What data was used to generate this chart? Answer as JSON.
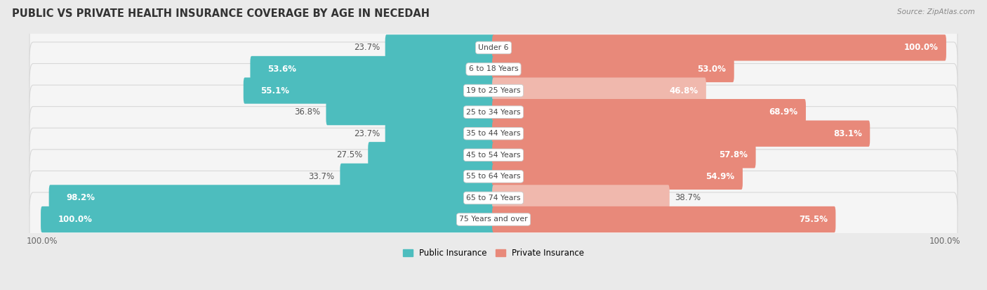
{
  "title": "PUBLIC VS PRIVATE HEALTH INSURANCE COVERAGE BY AGE IN NECEDAH",
  "source": "Source: ZipAtlas.com",
  "categories": [
    "Under 6",
    "6 to 18 Years",
    "19 to 25 Years",
    "25 to 34 Years",
    "35 to 44 Years",
    "45 to 54 Years",
    "55 to 64 Years",
    "65 to 74 Years",
    "75 Years and over"
  ],
  "public_values": [
    23.7,
    53.6,
    55.1,
    36.8,
    23.7,
    27.5,
    33.7,
    98.2,
    100.0
  ],
  "private_values": [
    100.0,
    53.0,
    46.8,
    68.9,
    83.1,
    57.8,
    54.9,
    38.7,
    75.5
  ],
  "public_color": "#4dbdbe",
  "private_color": "#e8897a",
  "private_color_light": "#f0b8ad",
  "background_color": "#eaeaea",
  "row_bg_color": "#f5f5f5",
  "row_border_color": "#d8d8d8",
  "title_fontsize": 10.5,
  "label_fontsize": 8.5,
  "tick_fontsize": 8.5,
  "max_value": 100.0,
  "legend_public": "Public Insurance",
  "legend_private": "Private Insurance",
  "inside_label_threshold": 45
}
